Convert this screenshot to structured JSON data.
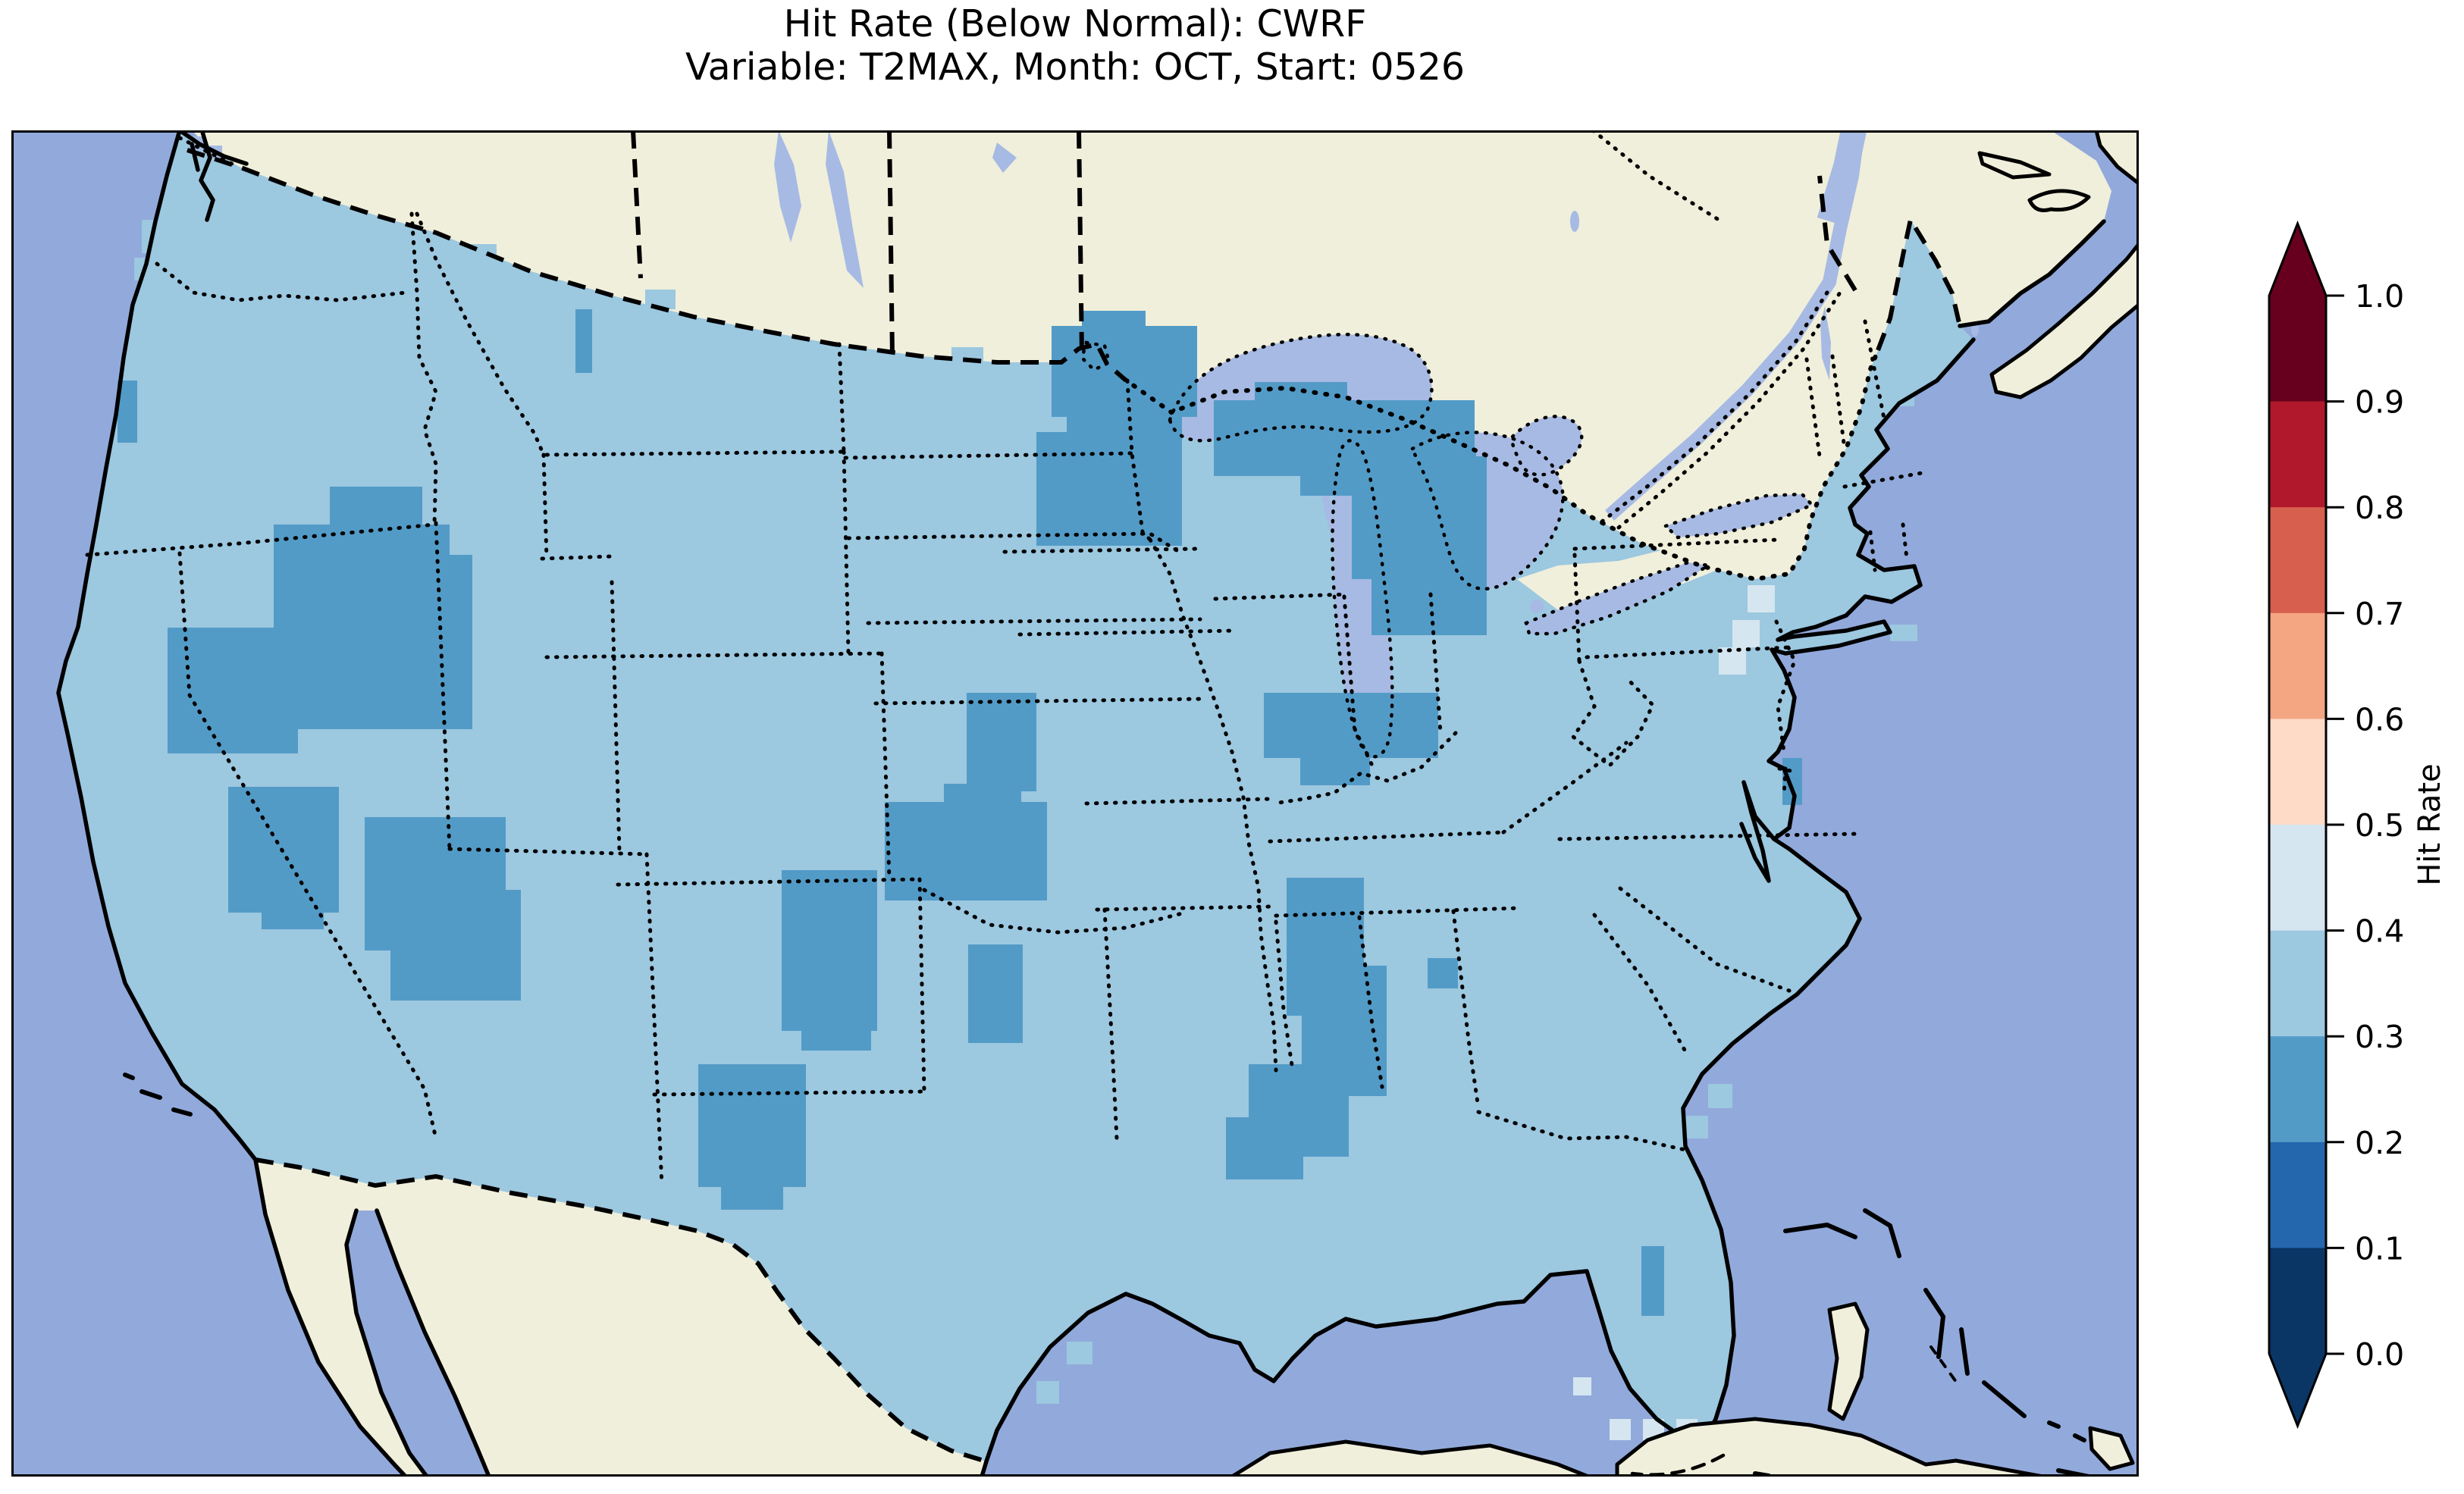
{
  "title": {
    "line1": "Hit Rate (Below Normal): CWRF",
    "line2": "Variable: T2MAX, Month: OCT, Start: 0526"
  },
  "colorbar": {
    "label": "Hit Rate",
    "ticks": [
      "1.0",
      "0.9",
      "0.8",
      "0.7",
      "0.6",
      "0.5",
      "0.4",
      "0.3",
      "0.2",
      "0.1",
      "0.0"
    ],
    "bin_colors_top_to_bottom": [
      "#67001f",
      "#b2182b",
      "#d6604d",
      "#f4a582",
      "#fddbc7",
      "#d5e6f0",
      "#9cc8e0",
      "#539bc7",
      "#2467ad",
      "#0a3666"
    ],
    "extend": "both",
    "range": [
      0.0,
      1.0
    ]
  },
  "map": {
    "type": "choropleth-grid over CONUS, Lambert-conformal style",
    "colors": {
      "ocean": "#92a9db",
      "land_non_us": "#f0efdb",
      "lake": "#a7bae4",
      "us_fill_bin_0.3_0.4": "#9cc8e0",
      "patch_bin_0.2_0.3": "#539bc7",
      "cell_bin_0.4_0.5": "#d5e6f0",
      "coastline": "#000000"
    },
    "dominant_value_bin": "0.3–0.4 over most of the contiguous United States",
    "regions_in_bin_0.2_0.3": [
      "Northern Minnesota / Northern Wisconsin",
      "Upper Peninsula and Northern Lower Michigan",
      "Northeastern Nevada / Western Utah",
      "Southern Nevada",
      "Central Arizona",
      "Northeastern New Mexico",
      "Southwestern Kansas / Oklahoma Panhandle",
      "Central Oklahoma",
      "West Texas",
      "Southern Indiana",
      "Mississippi / Western Alabama band",
      "Small cells: Oregon coast, Montana, Delmarva coast, Florida east coast"
    ],
    "cells_in_bin_0.4_0.5": [
      "Few cells in eastern Pennsylvania / New Jersey",
      "Few cells south of the Florida Keys"
    ],
    "boundary_styles": {
      "coastlines": "solid black",
      "country_borders": "dashed black",
      "state_borders": "dotted black"
    }
  }
}
